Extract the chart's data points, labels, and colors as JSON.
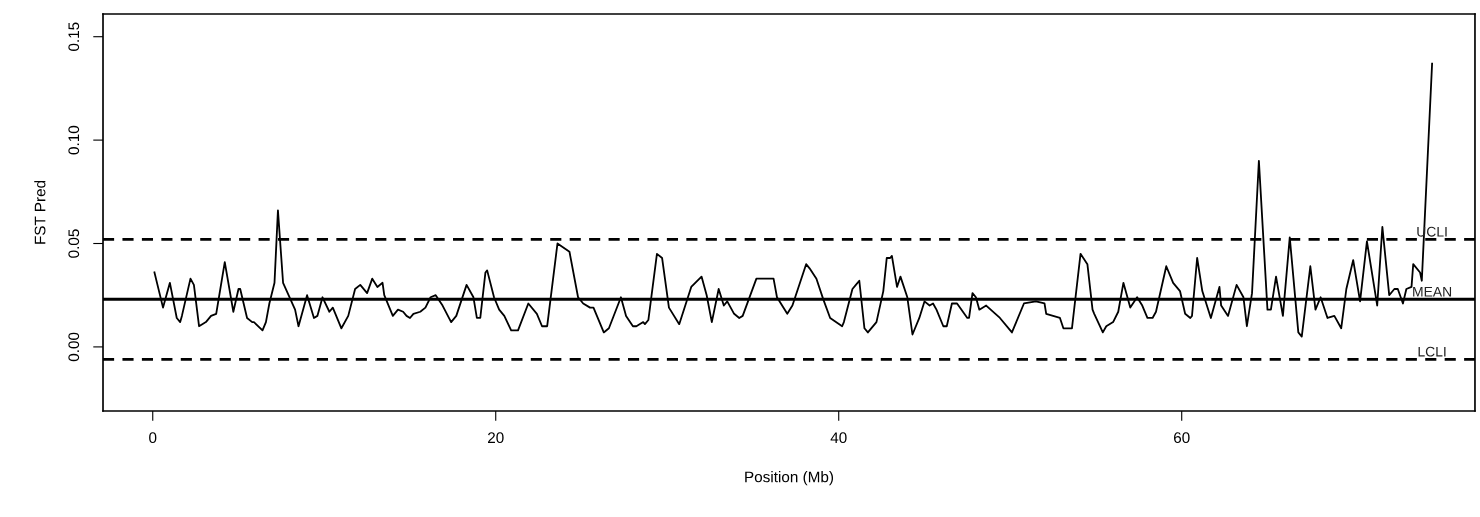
{
  "chart_data": {
    "type": "line",
    "xlabel": "Position (Mb)",
    "ylabel": "FST Pred",
    "series": [
      {
        "color": "#000000",
        "x": [
          0.1,
          0.6,
          1.0,
          1.4,
          1.6,
          1.7,
          2.2,
          2.4,
          2.7,
          3.1,
          3.4,
          3.7,
          4.2,
          4.7,
          5.0,
          5.1,
          5.5,
          5.8,
          5.9,
          6.4,
          6.6,
          6.8,
          7.1,
          7.3,
          7.6,
          8.3,
          8.5,
          9.0,
          9.4,
          9.6,
          9.9,
          10.3,
          10.5,
          11.0,
          11.4,
          11.8,
          12.1,
          12.5,
          12.8,
          13.1,
          13.4,
          13.5,
          14.0,
          14.3,
          14.6,
          14.8,
          15.0,
          15.2,
          15.6,
          15.9,
          16.2,
          16.5,
          16.9,
          17.4,
          17.7,
          18.3,
          18.7,
          18.9,
          19.1,
          19.4,
          19.5,
          19.9,
          20.2,
          20.5,
          20.9,
          21.3,
          21.9,
          22.4,
          22.7,
          23.0,
          23.6,
          24.3,
          24.8,
          25.1,
          25.5,
          25.7,
          26.3,
          26.6,
          27.3,
          27.6,
          28.0,
          28.2,
          28.6,
          28.7,
          28.9,
          29.4,
          29.7,
          30.1,
          30.7,
          31.4,
          32.0,
          32.3,
          32.6,
          33.0,
          33.3,
          33.5,
          33.9,
          34.2,
          34.4,
          35.2,
          36.2,
          36.4,
          37.0,
          37.3,
          38.1,
          38.3,
          38.7,
          39.1,
          39.5,
          40.2,
          40.3,
          40.8,
          41.0,
          41.2,
          41.5,
          41.7,
          42.2,
          42.6,
          42.8,
          43.0,
          43.1,
          43.4,
          43.6,
          44.0,
          44.3,
          44.7,
          45.0,
          45.3,
          45.5,
          45.7,
          46.1,
          46.3,
          46.6,
          46.9,
          47.5,
          47.6,
          47.8,
          48.0,
          48.2,
          48.6,
          49.4,
          50.1,
          50.8,
          51.5,
          52.0,
          52.1,
          52.9,
          53.1,
          53.6,
          54.1,
          54.5,
          54.8,
          54.9,
          55.4,
          55.6,
          56.0,
          56.3,
          56.6,
          57.0,
          57.4,
          57.7,
          58.0,
          58.3,
          58.5,
          59.1,
          59.5,
          59.9,
          60.2,
          60.5,
          60.6,
          60.9,
          61.2,
          61.7,
          62.2,
          62.3,
          62.7,
          63.2,
          63.6,
          63.8,
          64.1,
          64.5,
          65.0,
          65.2,
          65.5,
          65.9,
          66.3,
          66.8,
          67.0,
          67.5,
          67.8,
          68.1,
          68.5,
          68.9,
          69.3,
          69.6,
          70.0,
          70.4,
          70.8,
          71.4,
          71.7,
          72.1,
          72.4,
          72.6,
          72.9,
          73.1,
          73.4,
          73.5,
          73.9,
          74.0,
          74.6
        ],
        "values": [
          0.036,
          0.019,
          0.031,
          0.014,
          0.012,
          0.015,
          0.033,
          0.03,
          0.01,
          0.012,
          0.015,
          0.016,
          0.041,
          0.017,
          0.028,
          0.028,
          0.014,
          0.012,
          0.012,
          0.008,
          0.012,
          0.021,
          0.031,
          0.066,
          0.031,
          0.018,
          0.01,
          0.025,
          0.014,
          0.015,
          0.024,
          0.017,
          0.019,
          0.009,
          0.015,
          0.028,
          0.03,
          0.026,
          0.033,
          0.029,
          0.031,
          0.025,
          0.015,
          0.018,
          0.017,
          0.015,
          0.014,
          0.016,
          0.017,
          0.019,
          0.024,
          0.025,
          0.02,
          0.012,
          0.015,
          0.03,
          0.024,
          0.014,
          0.014,
          0.036,
          0.037,
          0.024,
          0.018,
          0.015,
          0.008,
          0.008,
          0.021,
          0.016,
          0.01,
          0.01,
          0.05,
          0.046,
          0.024,
          0.021,
          0.019,
          0.019,
          0.007,
          0.009,
          0.024,
          0.015,
          0.01,
          0.01,
          0.012,
          0.011,
          0.013,
          0.045,
          0.043,
          0.019,
          0.011,
          0.029,
          0.034,
          0.025,
          0.012,
          0.028,
          0.02,
          0.022,
          0.016,
          0.014,
          0.015,
          0.033,
          0.033,
          0.024,
          0.016,
          0.02,
          0.04,
          0.038,
          0.033,
          0.023,
          0.014,
          0.01,
          0.012,
          0.028,
          0.03,
          0.032,
          0.009,
          0.007,
          0.012,
          0.027,
          0.043,
          0.043,
          0.044,
          0.029,
          0.034,
          0.024,
          0.006,
          0.014,
          0.022,
          0.02,
          0.021,
          0.018,
          0.01,
          0.01,
          0.021,
          0.021,
          0.014,
          0.014,
          0.026,
          0.024,
          0.018,
          0.02,
          0.014,
          0.007,
          0.021,
          0.022,
          0.021,
          0.016,
          0.014,
          0.009,
          0.009,
          0.045,
          0.04,
          0.018,
          0.016,
          0.007,
          0.01,
          0.012,
          0.017,
          0.031,
          0.019,
          0.024,
          0.02,
          0.014,
          0.014,
          0.017,
          0.039,
          0.031,
          0.027,
          0.016,
          0.014,
          0.015,
          0.043,
          0.027,
          0.014,
          0.029,
          0.02,
          0.015,
          0.03,
          0.024,
          0.01,
          0.026,
          0.09,
          0.018,
          0.018,
          0.034,
          0.015,
          0.053,
          0.007,
          0.005,
          0.039,
          0.018,
          0.024,
          0.014,
          0.015,
          0.009,
          0.028,
          0.042,
          0.022,
          0.051,
          0.02,
          0.058,
          0.025,
          0.028,
          0.028,
          0.021,
          0.028,
          0.029,
          0.04,
          0.036,
          0.032,
          0.137
        ]
      }
    ],
    "xlim": [
      -2.9,
      77.1
    ],
    "ylim": [
      -0.031,
      0.161
    ],
    "xticks": [
      0,
      20,
      40,
      60
    ],
    "yticks": [
      {
        "value": 0,
        "label": "0.00"
      },
      {
        "value": 0.05,
        "label": "0.05"
      },
      {
        "value": 0.1,
        "label": "0.10"
      },
      {
        "value": 0.15,
        "label": "0.15"
      }
    ],
    "ref_lines": [
      {
        "axis": "y",
        "value": 0.052,
        "label": "UCLI",
        "color": "#000000",
        "line_style": "dashed"
      },
      {
        "axis": "y",
        "value": 0.023,
        "label": "MEAN",
        "color": "#000000",
        "line_style": "solid"
      },
      {
        "axis": "y",
        "value": -0.006,
        "label": "LCLI",
        "color": "#000000",
        "line_style": "dashed"
      }
    ],
    "grid": false,
    "legend": false,
    "marker": "none",
    "line_style": "solid"
  }
}
